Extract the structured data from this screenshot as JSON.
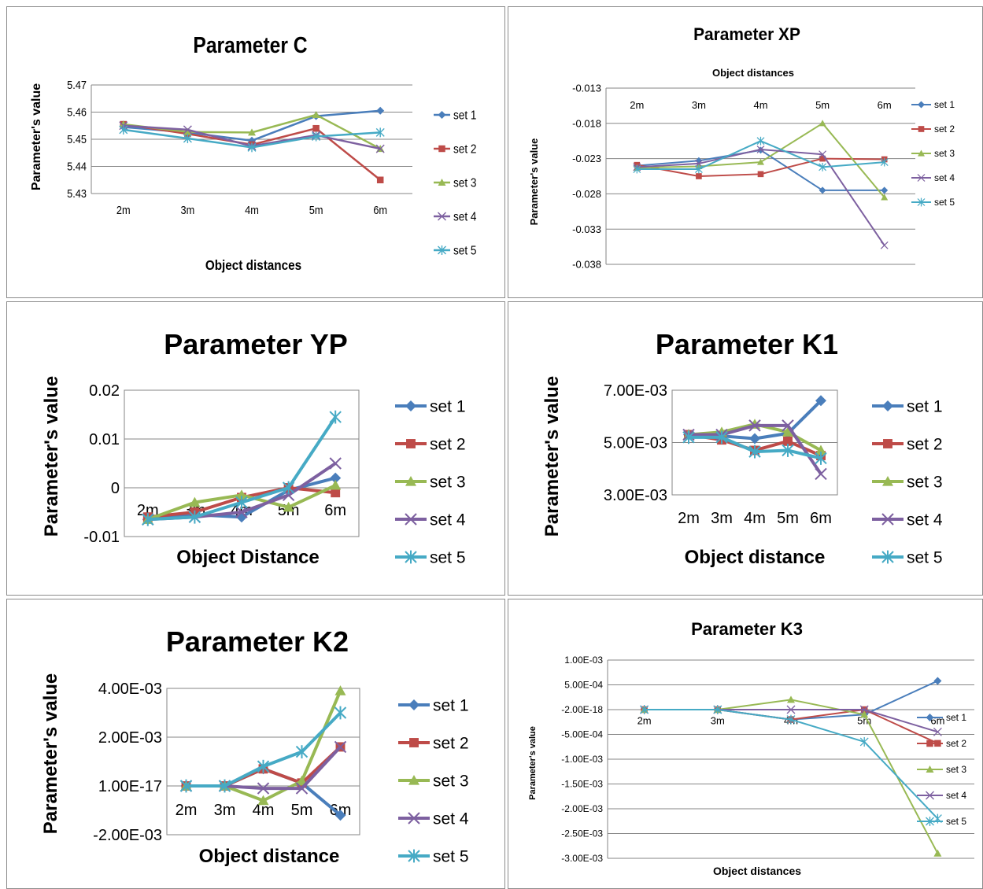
{
  "colors": [
    "#4a7ebb",
    "#be4b48",
    "#98b954",
    "#7d60a0",
    "#46aac5"
  ],
  "chart_data": [
    {
      "type": "line",
      "title": "Parameter  C",
      "xlabel": "Object distances",
      "ylabel": "Parameter's value",
      "categories": [
        "2m",
        "3m",
        "4m",
        "5m",
        "6m"
      ],
      "ylim": [
        5.43,
        5.47
      ],
      "yticks": [
        5.43,
        5.44,
        5.45,
        5.46,
        5.47
      ],
      "ytick_labels": [
        "5.43",
        "5.44",
        "5.45",
        "5.46",
        "5.47"
      ],
      "grid": true,
      "legend": "right",
      "series": [
        {
          "name": "set 1",
          "values": [
            5.4545,
            5.4525,
            5.4495,
            5.4585,
            5.4605
          ]
        },
        {
          "name": "set 2",
          "values": [
            5.4555,
            5.452,
            5.448,
            5.454,
            5.435
          ]
        },
        {
          "name": "set 3",
          "values": [
            5.4555,
            5.4527,
            5.4525,
            5.459,
            5.4465
          ]
        },
        {
          "name": "set 4",
          "values": [
            5.455,
            5.4535,
            5.4475,
            5.4515,
            5.4465
          ]
        },
        {
          "name": "set 5",
          "values": [
            5.4535,
            5.4503,
            5.447,
            5.451,
            5.4525
          ]
        }
      ]
    },
    {
      "type": "line",
      "title": "Parameter XP",
      "xlabel": "Object distances",
      "ylabel": "Parameter's value",
      "categories": [
        "2m",
        "3m",
        "4m",
        "5m",
        "6m"
      ],
      "ylim": [
        -0.038,
        -0.013
      ],
      "yticks": [
        -0.038,
        -0.033,
        -0.028,
        -0.023,
        -0.018,
        -0.013
      ],
      "ytick_labels": [
        "-0.038",
        "-0.033",
        "-0.028",
        "-0.023",
        "-0.018",
        "-0.013"
      ],
      "grid": true,
      "legend": "right",
      "series": [
        {
          "name": "set 1",
          "values": [
            -0.024,
            -0.0233,
            -0.0218,
            -0.0275,
            -0.0275
          ]
        },
        {
          "name": "set 2",
          "values": [
            -0.0239,
            -0.0255,
            -0.0252,
            -0.023,
            -0.0231
          ]
        },
        {
          "name": "set 3",
          "values": [
            -0.0243,
            -0.0241,
            -0.0235,
            -0.018,
            -0.0285
          ]
        },
        {
          "name": "set 4",
          "values": [
            -0.0242,
            -0.0237,
            -0.0217,
            -0.0224,
            -0.0353
          ]
        },
        {
          "name": "set 5",
          "values": [
            -0.0245,
            -0.0245,
            -0.0205,
            -0.0242,
            -0.0235
          ]
        }
      ]
    },
    {
      "type": "line",
      "title": "Parameter YP",
      "xlabel": "Object Distance",
      "ylabel": "Parameter's value",
      "categories": [
        "2m",
        "3m",
        "4m",
        "5m",
        "6m"
      ],
      "ylim": [
        -0.01,
        0.02
      ],
      "yticks": [
        -0.01,
        0,
        0.01,
        0.02
      ],
      "ytick_labels": [
        "-0.01",
        "0",
        "0.01",
        "0.02"
      ],
      "grid": true,
      "legend": "right",
      "series": [
        {
          "name": "set 1",
          "values": [
            -0.0065,
            -0.0055,
            -0.006,
            -0.0005,
            0.002
          ]
        },
        {
          "name": "set 2",
          "values": [
            -0.006,
            -0.005,
            -0.002,
            0.0,
            -0.001
          ]
        },
        {
          "name": "set 3",
          "values": [
            -0.0065,
            -0.003,
            -0.0015,
            -0.004,
            0.0005
          ]
        },
        {
          "name": "set 4",
          "values": [
            -0.0065,
            -0.006,
            -0.005,
            -0.0015,
            0.005
          ]
        },
        {
          "name": "set 5",
          "values": [
            -0.0065,
            -0.006,
            -0.003,
            0.0,
            0.0145
          ]
        }
      ]
    },
    {
      "type": "line",
      "title": "Parameter K1",
      "xlabel": "Object distance",
      "ylabel": "Parameter's value",
      "categories": [
        "2m",
        "3m",
        "4m",
        "5m",
        "6m"
      ],
      "ylim": [
        0.003,
        0.007
      ],
      "yticks": [
        0.003,
        0.005,
        0.007
      ],
      "ytick_labels": [
        "3.00E-03",
        "5.00E-03",
        "7.00E-03"
      ],
      "grid": true,
      "legend": "right",
      "series": [
        {
          "name": "set 1",
          "values": [
            0.0053,
            0.00525,
            0.00515,
            0.00535,
            0.0066
          ]
        },
        {
          "name": "set 2",
          "values": [
            0.0053,
            0.0051,
            0.0047,
            0.00505,
            0.0045
          ]
        },
        {
          "name": "set 3",
          "values": [
            0.0053,
            0.0054,
            0.0057,
            0.0054,
            0.0047
          ]
        },
        {
          "name": "set 4",
          "values": [
            0.0053,
            0.0053,
            0.00565,
            0.00565,
            0.0038
          ]
        },
        {
          "name": "set 5",
          "values": [
            0.0052,
            0.0052,
            0.00465,
            0.0047,
            0.0044
          ]
        }
      ]
    },
    {
      "type": "line",
      "title": "Parameter K2",
      "xlabel": "Object distance",
      "ylabel": "Parameter's value",
      "categories": [
        "2m",
        "3m",
        "4m",
        "5m",
        "6m"
      ],
      "ylim": [
        -0.002,
        0.004
      ],
      "yticks": [
        -0.002,
        0,
        0.002,
        0.004
      ],
      "ytick_labels": [
        "-2.00E-03",
        "1.00E-17",
        "2.00E-03",
        "4.00E-03"
      ],
      "grid": true,
      "legend": "right",
      "series": [
        {
          "name": "set 1",
          "values": [
            0,
            0,
            0.0007,
            0.00012,
            -0.0012
          ]
        },
        {
          "name": "set 2",
          "values": [
            0,
            0,
            0.0007,
            0.00012,
            0.0016
          ]
        },
        {
          "name": "set 3",
          "values": [
            0,
            0,
            -0.0006,
            0.0002,
            0.0039
          ]
        },
        {
          "name": "set 4",
          "values": [
            0,
            0,
            -0.0001,
            -0.0001,
            0.0016
          ]
        },
        {
          "name": "set 5",
          "values": [
            0,
            0,
            0.0008,
            0.0014,
            0.003
          ]
        }
      ]
    },
    {
      "type": "line",
      "title": "Parameter K3",
      "xlabel": "Object distances",
      "ylabel": "Parameter's value",
      "categories": [
        "2m",
        "3m",
        "4m",
        "5m",
        "6m"
      ],
      "ylim": [
        -0.003,
        0.001
      ],
      "yticks": [
        -0.003,
        -0.0025,
        -0.002,
        -0.0015,
        -0.001,
        -0.0005,
        0,
        0.0005,
        0.001
      ],
      "ytick_labels": [
        "-3.00E-03",
        "-2.50E-03",
        "-2.00E-03",
        "-1.50E-03",
        "-1.00E-03",
        "-5.00E-04",
        "-2.00E-18",
        "5.00E-04",
        "1.00E-03"
      ],
      "grid": true,
      "legend": "right",
      "series": [
        {
          "name": "set 1",
          "values": [
            0,
            0,
            -0.0002,
            -0.0001,
            0.00058
          ]
        },
        {
          "name": "set 2",
          "values": [
            0,
            0,
            -0.0002,
            0.0,
            -0.00068
          ]
        },
        {
          "name": "set 3",
          "values": [
            0,
            0,
            0.0002,
            -0.0001,
            -0.0029
          ]
        },
        {
          "name": "set 4",
          "values": [
            0,
            0,
            0.0,
            0.0,
            -0.00045
          ]
        },
        {
          "name": "set 5",
          "values": [
            0,
            0,
            -0.0002,
            -0.00065,
            -0.0022
          ]
        }
      ]
    }
  ]
}
